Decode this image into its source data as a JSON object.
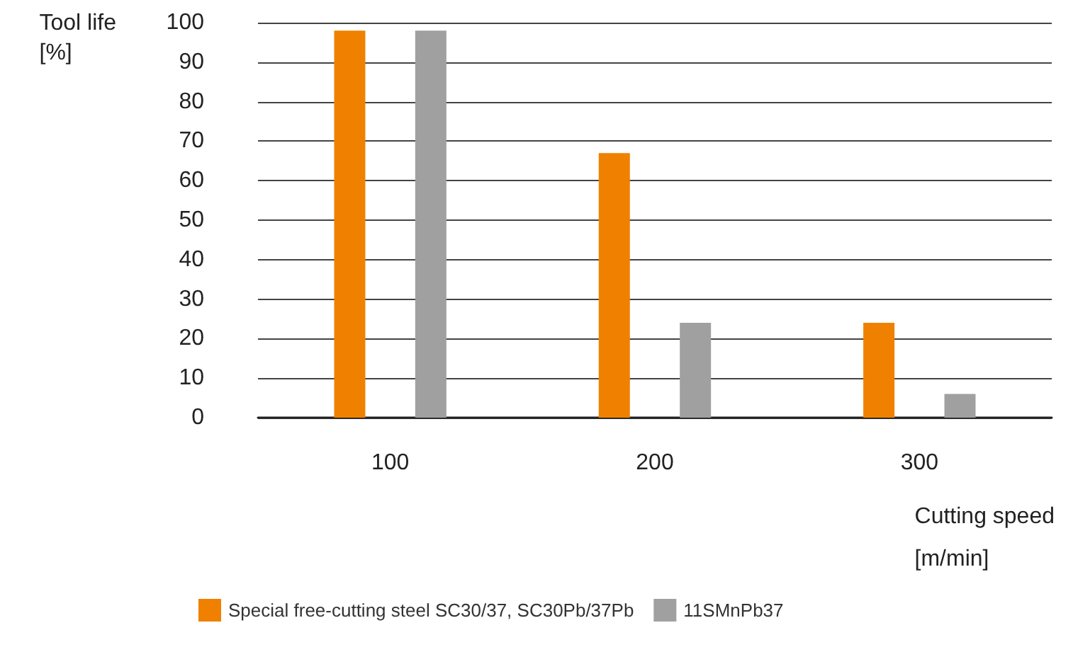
{
  "chart_data": {
    "type": "bar",
    "xlabel": "Cutting speed\n[m/min]",
    "ylabel": "Tool life\n[%]",
    "categories": [
      "100",
      "200",
      "300"
    ],
    "series": [
      {
        "name": "Special free-cutting steel SC30/37, SC30Pb/37Pb",
        "color": "#f08000",
        "values": [
          98,
          67,
          24
        ]
      },
      {
        "name": "11SMnPb37",
        "color": "#a0a0a0",
        "values": [
          98,
          24,
          6
        ]
      }
    ],
    "ylim": [
      0,
      100
    ],
    "yticks": [
      0,
      10,
      20,
      30,
      40,
      50,
      60,
      70,
      80,
      90,
      100
    ],
    "grid": "y",
    "legend": "bottom left"
  }
}
